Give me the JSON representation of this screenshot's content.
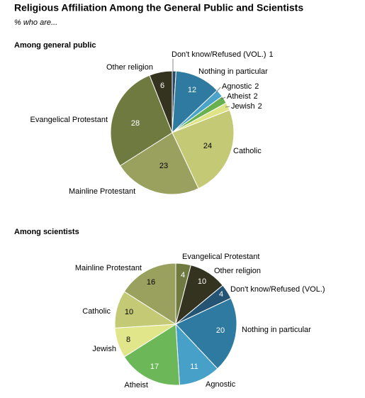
{
  "title": "Religious Affiliation Among the General Public and Scientists",
  "subtitle": "% who are...",
  "chart_data": [
    {
      "type": "pie",
      "title": "Among general public",
      "categories": [
        "Don't know/Refused (VOL.)",
        "Nothing in particular",
        "Agnostic",
        "Atheist",
        "Jewish",
        "Catholic",
        "Mainline Protestant",
        "Evangelical Protestant",
        "Other religion"
      ],
      "values": [
        1,
        12,
        2,
        2,
        2,
        24,
        23,
        28,
        6
      ],
      "colors": [
        "#2b4a66",
        "#2f7aa0",
        "#4ca3c9",
        "#69b14f",
        "#dfe486",
        "#c4c976",
        "#9aa05d",
        "#6f7a40",
        "#33331f"
      ]
    },
    {
      "type": "pie",
      "title": "Among scientists",
      "categories": [
        "Evangelical Protestant",
        "Other religion",
        "Don't know/Refused (VOL.)",
        "Nothing in particular",
        "Agnostic",
        "Atheist",
        "Jewish",
        "Catholic",
        "Mainline Protestant"
      ],
      "values": [
        4,
        10,
        4,
        20,
        11,
        17,
        8,
        10,
        16
      ],
      "colors": [
        "#6f7a40",
        "#33331f",
        "#245373",
        "#2f7aa0",
        "#46a0c8",
        "#6cb859",
        "#e2e68a",
        "#c4c976",
        "#9aa05d"
      ]
    }
  ]
}
